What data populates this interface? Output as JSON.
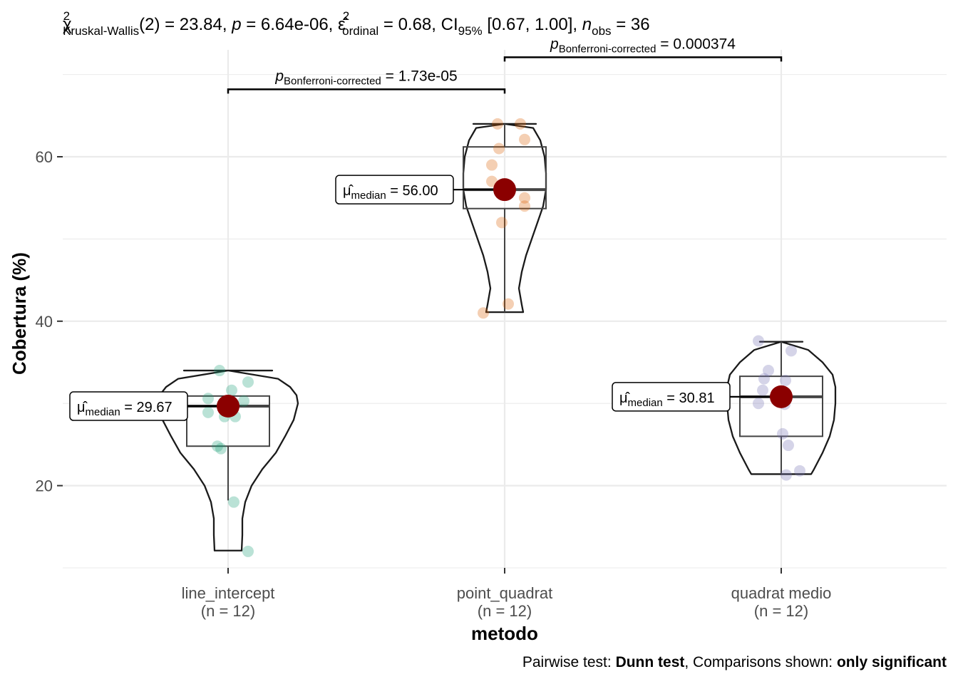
{
  "chart_data": {
    "type": "violin-box-scatter",
    "subtitle_parts": {
      "chi": "χ",
      "chi_sup": "2",
      "chi_sub": "Kruskal-Wallis",
      "chi_val": "(2) = 23.84, ",
      "p_label": "p",
      "p_val": " = 6.64e-06, ",
      "eps": "ε̂",
      "eps_sup": "2",
      "eps_sub": "ordinal",
      "eps_val": " = 0.68, CI",
      "ci_sub": "95%",
      "ci_val": " [0.67, 1.00], ",
      "n_label": "n",
      "n_sub": "obs",
      "n_val": " = 36"
    },
    "xlabel": "metodo",
    "ylabel": "Cobertura (%)",
    "ylim": [
      10,
      73
    ],
    "yticks": [
      20,
      40,
      60
    ],
    "grid": true,
    "caption_parts": {
      "p1": "Pairwise test: ",
      "b1": "Dunn test",
      "p2": ", Comparisons shown: ",
      "b2": "only significant"
    },
    "median_label": {
      "mu": "μ̂",
      "sub": "median",
      "eq": " = "
    },
    "groups": [
      {
        "name": "line_intercept",
        "n_label": "(n = 12)",
        "color": "#1b9e77",
        "median": 29.67,
        "median_label": "29.67",
        "box": {
          "q1": 24.8,
          "median": 29.67,
          "q3": 30.9,
          "whisker_low": 18.2,
          "whisker_high": 30.9
        },
        "violin": {
          "min": 12.1,
          "max": 34.0
        },
        "points": [
          {
            "y": 34.0,
            "jitter": -0.12
          },
          {
            "y": 32.6,
            "jitter": 0.28
          },
          {
            "y": 31.6,
            "jitter": 0.05
          },
          {
            "y": 30.6,
            "jitter": -0.28
          },
          {
            "y": 30.3,
            "jitter": 0.22
          },
          {
            "y": 28.9,
            "jitter": -0.28
          },
          {
            "y": 28.4,
            "jitter": 0.1
          },
          {
            "y": 28.4,
            "jitter": -0.05
          },
          {
            "y": 24.8,
            "jitter": -0.15
          },
          {
            "y": 24.5,
            "jitter": -0.1
          },
          {
            "y": 18.0,
            "jitter": 0.08
          },
          {
            "y": 12.0,
            "jitter": 0.28
          }
        ]
      },
      {
        "name": "point_quadrat",
        "n_label": "(n = 12)",
        "color": "#d95f02",
        "median": 56.0,
        "median_label": "56.00",
        "box": {
          "q1": 53.7,
          "median": 56.0,
          "q3": 61.2,
          "whisker_low": 41.1,
          "whisker_high": 64.0
        },
        "violin": {
          "min": 41.1,
          "max": 64.0
        },
        "points": [
          {
            "y": 64.0,
            "jitter": -0.1
          },
          {
            "y": 64.0,
            "jitter": 0.22
          },
          {
            "y": 62.1,
            "jitter": 0.28
          },
          {
            "y": 61.0,
            "jitter": -0.08
          },
          {
            "y": 59.0,
            "jitter": -0.18
          },
          {
            "y": 57.0,
            "jitter": -0.18
          },
          {
            "y": 55.0,
            "jitter": 0.28
          },
          {
            "y": 55.4,
            "jitter": 0.02
          },
          {
            "y": 54.0,
            "jitter": 0.28
          },
          {
            "y": 52.0,
            "jitter": -0.04
          },
          {
            "y": 42.1,
            "jitter": 0.05
          },
          {
            "y": 41.0,
            "jitter": -0.3
          }
        ]
      },
      {
        "name": "quadrat medio",
        "n_label": "(n = 12)",
        "color": "#7570b3",
        "median": 30.81,
        "median_label": "30.81",
        "box": {
          "q1": 26.0,
          "median": 30.81,
          "q3": 33.3,
          "whisker_low": 21.5,
          "whisker_high": 37.5
        },
        "violin": {
          "min": 21.4,
          "max": 37.5
        },
        "points": [
          {
            "y": 37.6,
            "jitter": -0.32
          },
          {
            "y": 36.4,
            "jitter": 0.14
          },
          {
            "y": 34.0,
            "jitter": -0.18
          },
          {
            "y": 33.0,
            "jitter": -0.24
          },
          {
            "y": 32.8,
            "jitter": 0.06
          },
          {
            "y": 31.6,
            "jitter": -0.26
          },
          {
            "y": 30.0,
            "jitter": -0.32
          },
          {
            "y": 29.9,
            "jitter": 0.05
          },
          {
            "y": 26.3,
            "jitter": 0.02
          },
          {
            "y": 24.9,
            "jitter": 0.1
          },
          {
            "y": 21.8,
            "jitter": 0.26
          },
          {
            "y": 21.3,
            "jitter": 0.07
          }
        ]
      }
    ],
    "comparisons": [
      {
        "from": 0,
        "to": 1,
        "y": 68.2,
        "label_main": "p",
        "label_sub": "Bonferroni-corrected",
        "label_val": " = 1.73e-05"
      },
      {
        "from": 1,
        "to": 2,
        "y": 72.1,
        "label_main": "p",
        "label_sub": "Bonferroni-corrected",
        "label_val": " = 0.000374"
      }
    ]
  }
}
